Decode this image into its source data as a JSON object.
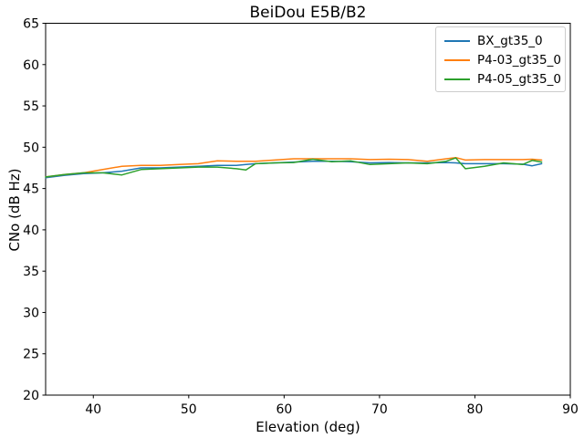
{
  "figure": {
    "title": "BeiDou E5B/B2",
    "xlabel": "Elevation (deg)",
    "ylabel": "CNo (dB Hz)"
  },
  "chart_data": {
    "type": "line",
    "title": "BeiDou E5B/B2",
    "xlabel": "Elevation (deg)",
    "ylabel": "CNo (dB Hz)",
    "xlim": [
      35,
      90
    ],
    "ylim": [
      20,
      65
    ],
    "xticks": [
      40,
      50,
      60,
      70,
      80,
      90
    ],
    "yticks": [
      20,
      25,
      30,
      35,
      40,
      45,
      50,
      55,
      60,
      65
    ],
    "grid": false,
    "legend_position": "upper right",
    "x": [
      35,
      37,
      39,
      41,
      43,
      45,
      47,
      49,
      51,
      53,
      55,
      56,
      57,
      59,
      61,
      63,
      65,
      67,
      69,
      71,
      73,
      75,
      77,
      78,
      79,
      81,
      83,
      85,
      86,
      87
    ],
    "series": [
      {
        "name": "BX_gt35_0",
        "color": "#1f77b4",
        "values": [
          46.3,
          46.6,
          46.8,
          46.9,
          47.1,
          47.5,
          47.5,
          47.6,
          47.7,
          47.8,
          47.8,
          47.9,
          48.0,
          48.1,
          48.2,
          48.3,
          48.3,
          48.25,
          48.1,
          48.15,
          48.1,
          48.1,
          48.15,
          48.1,
          48.0,
          48.0,
          48.0,
          47.95,
          47.75,
          48.0
        ]
      },
      {
        "name": "P4-03_gt35_0",
        "color": "#ff7f0e",
        "values": [
          46.4,
          46.7,
          46.9,
          47.3,
          47.7,
          47.8,
          47.8,
          47.9,
          48.0,
          48.35,
          48.3,
          48.3,
          48.3,
          48.45,
          48.6,
          48.6,
          48.6,
          48.6,
          48.5,
          48.55,
          48.5,
          48.3,
          48.6,
          48.75,
          48.45,
          48.5,
          48.5,
          48.5,
          48.55,
          48.45
        ]
      },
      {
        "name": "P4-05_gt35_0",
        "color": "#2ca02c",
        "values": [
          46.4,
          46.7,
          46.9,
          46.9,
          46.65,
          47.3,
          47.4,
          47.5,
          47.6,
          47.6,
          47.4,
          47.25,
          48.0,
          48.1,
          48.15,
          48.55,
          48.25,
          48.35,
          47.9,
          48.0,
          48.1,
          48.0,
          48.3,
          48.7,
          47.4,
          47.7,
          48.1,
          47.9,
          48.4,
          48.2
        ]
      }
    ]
  }
}
